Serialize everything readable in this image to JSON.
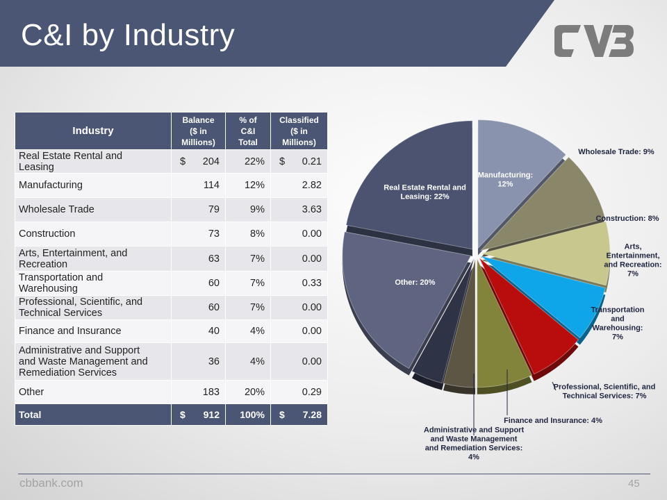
{
  "slide": {
    "title": "C&I by Industry",
    "footer_site": "cbbank.com",
    "page_number": "45"
  },
  "colors": {
    "banner": "#4b5675",
    "logo": "#7c7c7c"
  },
  "table": {
    "headers": {
      "industry": "Industry",
      "balance": [
        "Balance",
        "($ in",
        "Millions)"
      ],
      "pct": [
        "% of",
        "C&I",
        "Total"
      ],
      "classified": [
        "Classified",
        "($ in",
        "Millions)"
      ]
    },
    "rows": [
      {
        "industry": [
          "Real Estate Rental and",
          "Leasing"
        ],
        "balance": "204",
        "balance_dollar": "$",
        "pct": "22%",
        "classified": "0.21",
        "classified_dollar": "$"
      },
      {
        "industry": [
          "Manufacturing"
        ],
        "balance": "114",
        "pct": "12%",
        "classified": "2.82"
      },
      {
        "industry": [
          "Wholesale Trade"
        ],
        "balance": "79",
        "pct": "9%",
        "classified": "3.63"
      },
      {
        "industry": [
          "Construction"
        ],
        "balance": "73",
        "pct": "8%",
        "classified": "0.00"
      },
      {
        "industry": [
          "Arts, Entertainment, and",
          "Recreation"
        ],
        "balance": "63",
        "pct": "7%",
        "classified": "0.00"
      },
      {
        "industry": [
          "Transportation and",
          "Warehousing"
        ],
        "balance": "60",
        "pct": "7%",
        "classified": "0.33"
      },
      {
        "industry": [
          "Professional, Scientific, and",
          "Technical Services"
        ],
        "balance": "60",
        "pct": "7%",
        "classified": "0.00"
      },
      {
        "industry": [
          "Finance and Insurance"
        ],
        "balance": "40",
        "pct": "4%",
        "classified": "0.00"
      },
      {
        "industry": [
          "Administrative and Support",
          "and Waste Management and",
          "Remediation Services"
        ],
        "balance": "36",
        "pct": "4%",
        "classified": "0.00"
      },
      {
        "industry": [
          "Other"
        ],
        "balance": "183",
        "pct": "20%",
        "classified": "0.29"
      }
    ],
    "total": {
      "label": "Total",
      "balance_dollar": "$",
      "balance": "912",
      "pct": "100%",
      "classified_dollar": "$",
      "classified": "7.28"
    }
  },
  "chart_data": {
    "type": "pie",
    "title": "",
    "slices": [
      {
        "name": "Manufacturing",
        "value": 12,
        "label": [
          "Manufacturing:",
          "12%"
        ],
        "color": "#8a93ae"
      },
      {
        "name": "Wholesale Trade",
        "value": 9,
        "label": [
          "Wholesale Trade: 9%"
        ],
        "color": "#8a866a"
      },
      {
        "name": "Construction",
        "value": 8,
        "label": [
          "Construction: 8%"
        ],
        "color": "#c8c88e"
      },
      {
        "name": "Arts, Entertainment, and Recreation",
        "value": 7,
        "label": [
          "Arts,",
          "Entertainment,",
          "and Recreation:",
          "7%"
        ],
        "color": "#0ea5e9"
      },
      {
        "name": "Transportation and Warehousing",
        "value": 7,
        "label": [
          "Transportation",
          "and",
          "Warehousing:",
          "7%"
        ],
        "color": "#b90d0d"
      },
      {
        "name": "Professional, Scientific, and Technical Services",
        "value": 7,
        "label": [
          "Professional, Scientific, and",
          "Technical Services: 7%"
        ],
        "color": "#83843c"
      },
      {
        "name": "Finance and Insurance",
        "value": 4,
        "label": [
          "Finance and Insurance: 4%"
        ],
        "color": "#5e5645"
      },
      {
        "name": "Administrative and Support and Waste Management and Remediation Services",
        "value": 4,
        "label": [
          "Administrative and Support",
          "and Waste Management",
          "and Remediation Services:",
          "4%"
        ],
        "color": "#2e3345"
      },
      {
        "name": "Other",
        "value": 20,
        "label": [
          "Other: 20%"
        ],
        "color": "#5f6580"
      },
      {
        "name": "Real Estate Rental and Leasing",
        "value": 22,
        "label": [
          "Real Estate Rental and",
          "Leasing: 22%"
        ],
        "color": "#4b5370"
      }
    ]
  }
}
